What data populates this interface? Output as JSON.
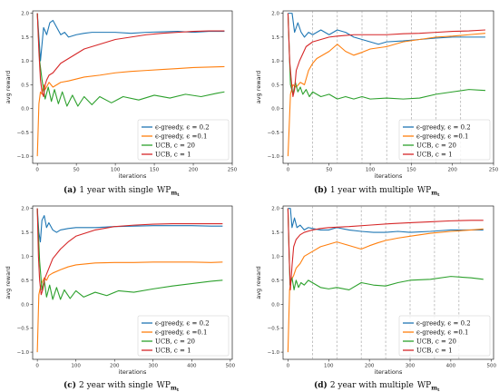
{
  "colors": {
    "blue": "#1f77b4",
    "orange": "#ff7f0e",
    "green": "#2ca02c",
    "red": "#d62728",
    "dash": "#999999"
  },
  "chart_data": [
    {
      "id": "a",
      "type": "line",
      "xlabel": "iterations",
      "ylabel": "avg reward",
      "xlim": [
        -6,
        250
      ],
      "ylim": [
        -1.15,
        2.05
      ],
      "xticks": [
        0,
        50,
        100,
        150,
        200,
        250
      ],
      "yticks": [
        -1.0,
        -0.5,
        0.0,
        0.5,
        1.0,
        1.5,
        2.0
      ],
      "ytick_labels": [
        "−1.0",
        "−0.5",
        "0.0",
        "0.5",
        "1.0",
        "1.5",
        "2.0"
      ],
      "dashed_x": [],
      "legend_position": "lower-right",
      "caption": {
        "letter": "(a)",
        "text": "1 year with single",
        "wp": "WP",
        "sub": "m",
        "subsub": "t"
      },
      "series": [
        {
          "name": "ϵ-greedy, ϵ = 0.2",
          "color": "#1f77b4",
          "x": [
            0,
            2,
            4,
            6,
            8,
            12,
            16,
            20,
            25,
            30,
            35,
            40,
            50,
            60,
            70,
            80,
            100,
            120,
            140,
            160,
            180,
            200,
            220,
            240
          ],
          "y": [
            2.0,
            1.5,
            1.0,
            1.35,
            1.7,
            1.55,
            1.8,
            1.85,
            1.7,
            1.55,
            1.6,
            1.5,
            1.55,
            1.58,
            1.6,
            1.6,
            1.6,
            1.58,
            1.6,
            1.61,
            1.62,
            1.6,
            1.62,
            1.62
          ]
        },
        {
          "name": "ϵ-greedy, ϵ =0.1",
          "color": "#ff7f0e",
          "x": [
            0,
            2,
            4,
            6,
            8,
            10,
            15,
            20,
            25,
            30,
            40,
            50,
            60,
            80,
            100,
            120,
            140,
            160,
            180,
            200,
            220,
            240
          ],
          "y": [
            -1.0,
            0.1,
            0.35,
            0.3,
            0.5,
            0.4,
            0.55,
            0.45,
            0.5,
            0.55,
            0.58,
            0.62,
            0.66,
            0.7,
            0.75,
            0.78,
            0.8,
            0.82,
            0.84,
            0.86,
            0.87,
            0.88
          ]
        },
        {
          "name": "UCB, c = 20",
          "color": "#2ca02c",
          "x": [
            0,
            3,
            6,
            10,
            14,
            18,
            22,
            27,
            32,
            38,
            45,
            52,
            60,
            70,
            80,
            95,
            110,
            130,
            150,
            170,
            190,
            210,
            230,
            240
          ],
          "y": [
            2.0,
            1.0,
            0.6,
            0.2,
            0.45,
            0.15,
            0.4,
            0.1,
            0.35,
            0.05,
            0.28,
            0.05,
            0.25,
            0.08,
            0.25,
            0.12,
            0.25,
            0.18,
            0.28,
            0.22,
            0.3,
            0.25,
            0.32,
            0.35
          ]
        },
        {
          "name": "UCB, c = 1",
          "color": "#d62728",
          "x": [
            0,
            2,
            4,
            6,
            8,
            10,
            12,
            15,
            20,
            25,
            30,
            40,
            50,
            60,
            80,
            100,
            120,
            140,
            160,
            180,
            200,
            220,
            240
          ],
          "y": [
            2.0,
            1.2,
            0.6,
            0.35,
            0.25,
            0.5,
            0.6,
            0.7,
            0.75,
            0.85,
            0.95,
            1.05,
            1.15,
            1.25,
            1.35,
            1.45,
            1.5,
            1.55,
            1.58,
            1.6,
            1.62,
            1.63,
            1.63
          ]
        }
      ]
    },
    {
      "id": "b",
      "type": "line",
      "xlabel": "iterations",
      "ylabel": "avg reward",
      "xlim": [
        -6,
        250
      ],
      "ylim": [
        -1.15,
        2.05
      ],
      "xticks": [
        0,
        50,
        100,
        150,
        200,
        250
      ],
      "yticks": [
        -1.0,
        -0.5,
        0.0,
        0.5,
        1.0,
        1.5,
        2.0
      ],
      "ytick_labels": [
        "−1.0",
        "−0.5",
        "0.0",
        "0.5",
        "1.0",
        "1.5",
        "2.0"
      ],
      "dashed_x": [
        30,
        60,
        90,
        120,
        150,
        180,
        210
      ],
      "legend_position": "lower-right",
      "caption": {
        "letter": "(b)",
        "text": "1 year with multiple",
        "wp": "WP",
        "sub": "m",
        "subsub": "t"
      },
      "series": [
        {
          "name": "ϵ-greedy, ϵ = 0.2",
          "color": "#1f77b4",
          "x": [
            0,
            5,
            8,
            12,
            16,
            20,
            25,
            30,
            35,
            40,
            50,
            60,
            70,
            80,
            90,
            100,
            110,
            120,
            140,
            160,
            180,
            200,
            220,
            240
          ],
          "y": [
            2.0,
            2.0,
            1.6,
            1.8,
            1.6,
            1.5,
            1.6,
            1.55,
            1.6,
            1.65,
            1.55,
            1.65,
            1.6,
            1.5,
            1.45,
            1.4,
            1.35,
            1.4,
            1.42,
            1.45,
            1.48,
            1.5,
            1.5,
            1.5
          ]
        },
        {
          "name": "ϵ-greedy, ϵ =0.1",
          "color": "#ff7f0e",
          "x": [
            0,
            3,
            6,
            10,
            15,
            20,
            25,
            30,
            35,
            40,
            50,
            60,
            70,
            80,
            90,
            100,
            120,
            140,
            160,
            180,
            200,
            220,
            240
          ],
          "y": [
            -1.0,
            0.3,
            0.5,
            0.45,
            0.55,
            0.5,
            0.8,
            0.95,
            1.05,
            1.1,
            1.2,
            1.35,
            1.2,
            1.12,
            1.18,
            1.25,
            1.3,
            1.4,
            1.45,
            1.5,
            1.52,
            1.55,
            1.58
          ]
        },
        {
          "name": "UCB, c = 20",
          "color": "#2ca02c",
          "x": [
            0,
            3,
            6,
            9,
            12,
            15,
            18,
            22,
            26,
            30,
            40,
            50,
            60,
            70,
            80,
            90,
            100,
            120,
            140,
            160,
            180,
            200,
            220,
            240
          ],
          "y": [
            2.0,
            0.5,
            0.3,
            0.55,
            0.35,
            0.45,
            0.3,
            0.4,
            0.25,
            0.35,
            0.25,
            0.3,
            0.2,
            0.25,
            0.2,
            0.25,
            0.2,
            0.22,
            0.2,
            0.22,
            0.3,
            0.35,
            0.4,
            0.38
          ]
        },
        {
          "name": "UCB, c = 1",
          "color": "#d62728",
          "x": [
            0,
            2,
            4,
            6,
            8,
            10,
            14,
            18,
            22,
            30,
            40,
            50,
            60,
            80,
            100,
            120,
            140,
            160,
            180,
            200,
            220,
            240
          ],
          "y": [
            2.0,
            1.0,
            0.6,
            0.25,
            0.4,
            0.8,
            1.0,
            1.15,
            1.3,
            1.4,
            1.45,
            1.5,
            1.52,
            1.55,
            1.55,
            1.55,
            1.57,
            1.58,
            1.6,
            1.62,
            1.63,
            1.65
          ]
        }
      ]
    },
    {
      "id": "c",
      "type": "line",
      "xlabel": "iterations",
      "ylabel": "avg reward",
      "xlim": [
        -12,
        505
      ],
      "ylim": [
        -1.15,
        2.05
      ],
      "xticks": [
        0,
        100,
        200,
        300,
        400,
        500
      ],
      "yticks": [
        -1.0,
        -0.5,
        0.0,
        0.5,
        1.0,
        1.5,
        2.0
      ],
      "ytick_labels": [
        "−1.0",
        "−0.5",
        "0.0",
        "0.5",
        "1.0",
        "1.5",
        "2.0"
      ],
      "dashed_x": [],
      "legend_position": "lower-right",
      "caption": {
        "letter": "(c)",
        "text": "2 year with single",
        "wp": "WP",
        "sub": "m",
        "subsub": "t"
      },
      "series": [
        {
          "name": "ϵ-greedy, ϵ = 0.2",
          "color": "#1f77b4",
          "x": [
            0,
            4,
            8,
            12,
            18,
            24,
            30,
            40,
            50,
            60,
            80,
            100,
            150,
            200,
            250,
            300,
            350,
            400,
            450,
            480
          ],
          "y": [
            2.0,
            1.5,
            1.3,
            1.75,
            1.85,
            1.6,
            1.7,
            1.55,
            1.5,
            1.55,
            1.58,
            1.6,
            1.6,
            1.62,
            1.63,
            1.64,
            1.64,
            1.64,
            1.63,
            1.63
          ]
        },
        {
          "name": "ϵ-greedy, ϵ =0.1",
          "color": "#ff7f0e",
          "x": [
            0,
            4,
            8,
            12,
            18,
            24,
            30,
            40,
            60,
            80,
            100,
            150,
            200,
            250,
            300,
            350,
            400,
            450,
            480
          ],
          "y": [
            -1.0,
            0.2,
            0.35,
            0.45,
            0.55,
            0.5,
            0.6,
            0.65,
            0.72,
            0.78,
            0.82,
            0.86,
            0.87,
            0.87,
            0.88,
            0.88,
            0.88,
            0.87,
            0.88
          ]
        },
        {
          "name": "UCB, c = 20",
          "color": "#2ca02c",
          "x": [
            0,
            6,
            12,
            18,
            24,
            32,
            40,
            50,
            60,
            70,
            85,
            100,
            120,
            150,
            180,
            210,
            250,
            300,
            350,
            400,
            450,
            480
          ],
          "y": [
            2.0,
            0.9,
            0.3,
            0.5,
            0.15,
            0.4,
            0.1,
            0.35,
            0.1,
            0.3,
            0.12,
            0.28,
            0.15,
            0.25,
            0.18,
            0.28,
            0.25,
            0.32,
            0.38,
            0.43,
            0.48,
            0.5
          ]
        },
        {
          "name": "UCB, c = 1",
          "color": "#d62728",
          "x": [
            0,
            3,
            6,
            10,
            14,
            20,
            30,
            40,
            60,
            80,
            100,
            150,
            200,
            250,
            300,
            350,
            400,
            450,
            480
          ],
          "y": [
            2.0,
            1.0,
            0.5,
            0.2,
            0.3,
            0.55,
            0.75,
            0.95,
            1.15,
            1.3,
            1.42,
            1.55,
            1.62,
            1.65,
            1.67,
            1.68,
            1.68,
            1.68,
            1.68
          ]
        }
      ]
    },
    {
      "id": "d",
      "type": "line",
      "xlabel": "iterations",
      "ylabel": "avg reward",
      "xlim": [
        -12,
        505
      ],
      "ylim": [
        -1.15,
        2.05
      ],
      "xticks": [
        0,
        100,
        200,
        300,
        400,
        500
      ],
      "yticks": [
        -1.0,
        -0.5,
        0.0,
        0.5,
        1.0,
        1.5,
        2.0
      ],
      "ytick_labels": [
        "−1.0",
        "−0.5",
        "0.0",
        "0.5",
        "1.0",
        "1.5",
        "2.0"
      ],
      "dashed_x": [
        60,
        120,
        180,
        240,
        300,
        360,
        420
      ],
      "legend_position": "lower-right",
      "caption": {
        "letter": "(d)",
        "text": "2 year with multiple",
        "wp": "WP",
        "sub": "m",
        "subsub": "t"
      },
      "series": [
        {
          "name": "ϵ-greedy, ϵ = 0.2",
          "color": "#1f77b4",
          "x": [
            0,
            6,
            10,
            16,
            22,
            30,
            40,
            50,
            60,
            80,
            100,
            120,
            150,
            180,
            210,
            240,
            270,
            300,
            350,
            400,
            450,
            480
          ],
          "y": [
            2.0,
            2.0,
            1.6,
            1.8,
            1.6,
            1.65,
            1.55,
            1.6,
            1.58,
            1.55,
            1.55,
            1.6,
            1.55,
            1.52,
            1.5,
            1.5,
            1.52,
            1.5,
            1.52,
            1.55,
            1.55,
            1.55
          ]
        },
        {
          "name": "ϵ-greedy, ϵ =0.1",
          "color": "#ff7f0e",
          "x": [
            0,
            4,
            8,
            14,
            20,
            30,
            40,
            60,
            80,
            100,
            120,
            140,
            160,
            180,
            200,
            220,
            240,
            270,
            300,
            350,
            400,
            450,
            480
          ],
          "y": [
            -1.0,
            0.3,
            0.5,
            0.6,
            0.75,
            0.85,
            1.0,
            1.1,
            1.2,
            1.25,
            1.3,
            1.25,
            1.2,
            1.15,
            1.22,
            1.28,
            1.33,
            1.38,
            1.42,
            1.48,
            1.52,
            1.55,
            1.57
          ]
        },
        {
          "name": "UCB, c = 20",
          "color": "#2ca02c",
          "x": [
            0,
            5,
            10,
            15,
            20,
            26,
            32,
            40,
            50,
            60,
            80,
            100,
            120,
            150,
            180,
            210,
            240,
            270,
            300,
            350,
            400,
            450,
            480
          ],
          "y": [
            2.0,
            0.4,
            0.55,
            0.3,
            0.5,
            0.35,
            0.45,
            0.4,
            0.5,
            0.45,
            0.35,
            0.32,
            0.35,
            0.3,
            0.45,
            0.4,
            0.38,
            0.45,
            0.5,
            0.52,
            0.58,
            0.55,
            0.52
          ]
        },
        {
          "name": "UCB, c = 1",
          "color": "#d62728",
          "x": [
            0,
            3,
            6,
            10,
            14,
            20,
            30,
            40,
            60,
            80,
            100,
            150,
            200,
            250,
            300,
            350,
            400,
            450,
            480
          ],
          "y": [
            2.0,
            1.0,
            0.3,
            0.8,
            1.2,
            1.35,
            1.45,
            1.5,
            1.55,
            1.58,
            1.6,
            1.62,
            1.65,
            1.68,
            1.7,
            1.72,
            1.74,
            1.75,
            1.75
          ]
        }
      ]
    }
  ]
}
